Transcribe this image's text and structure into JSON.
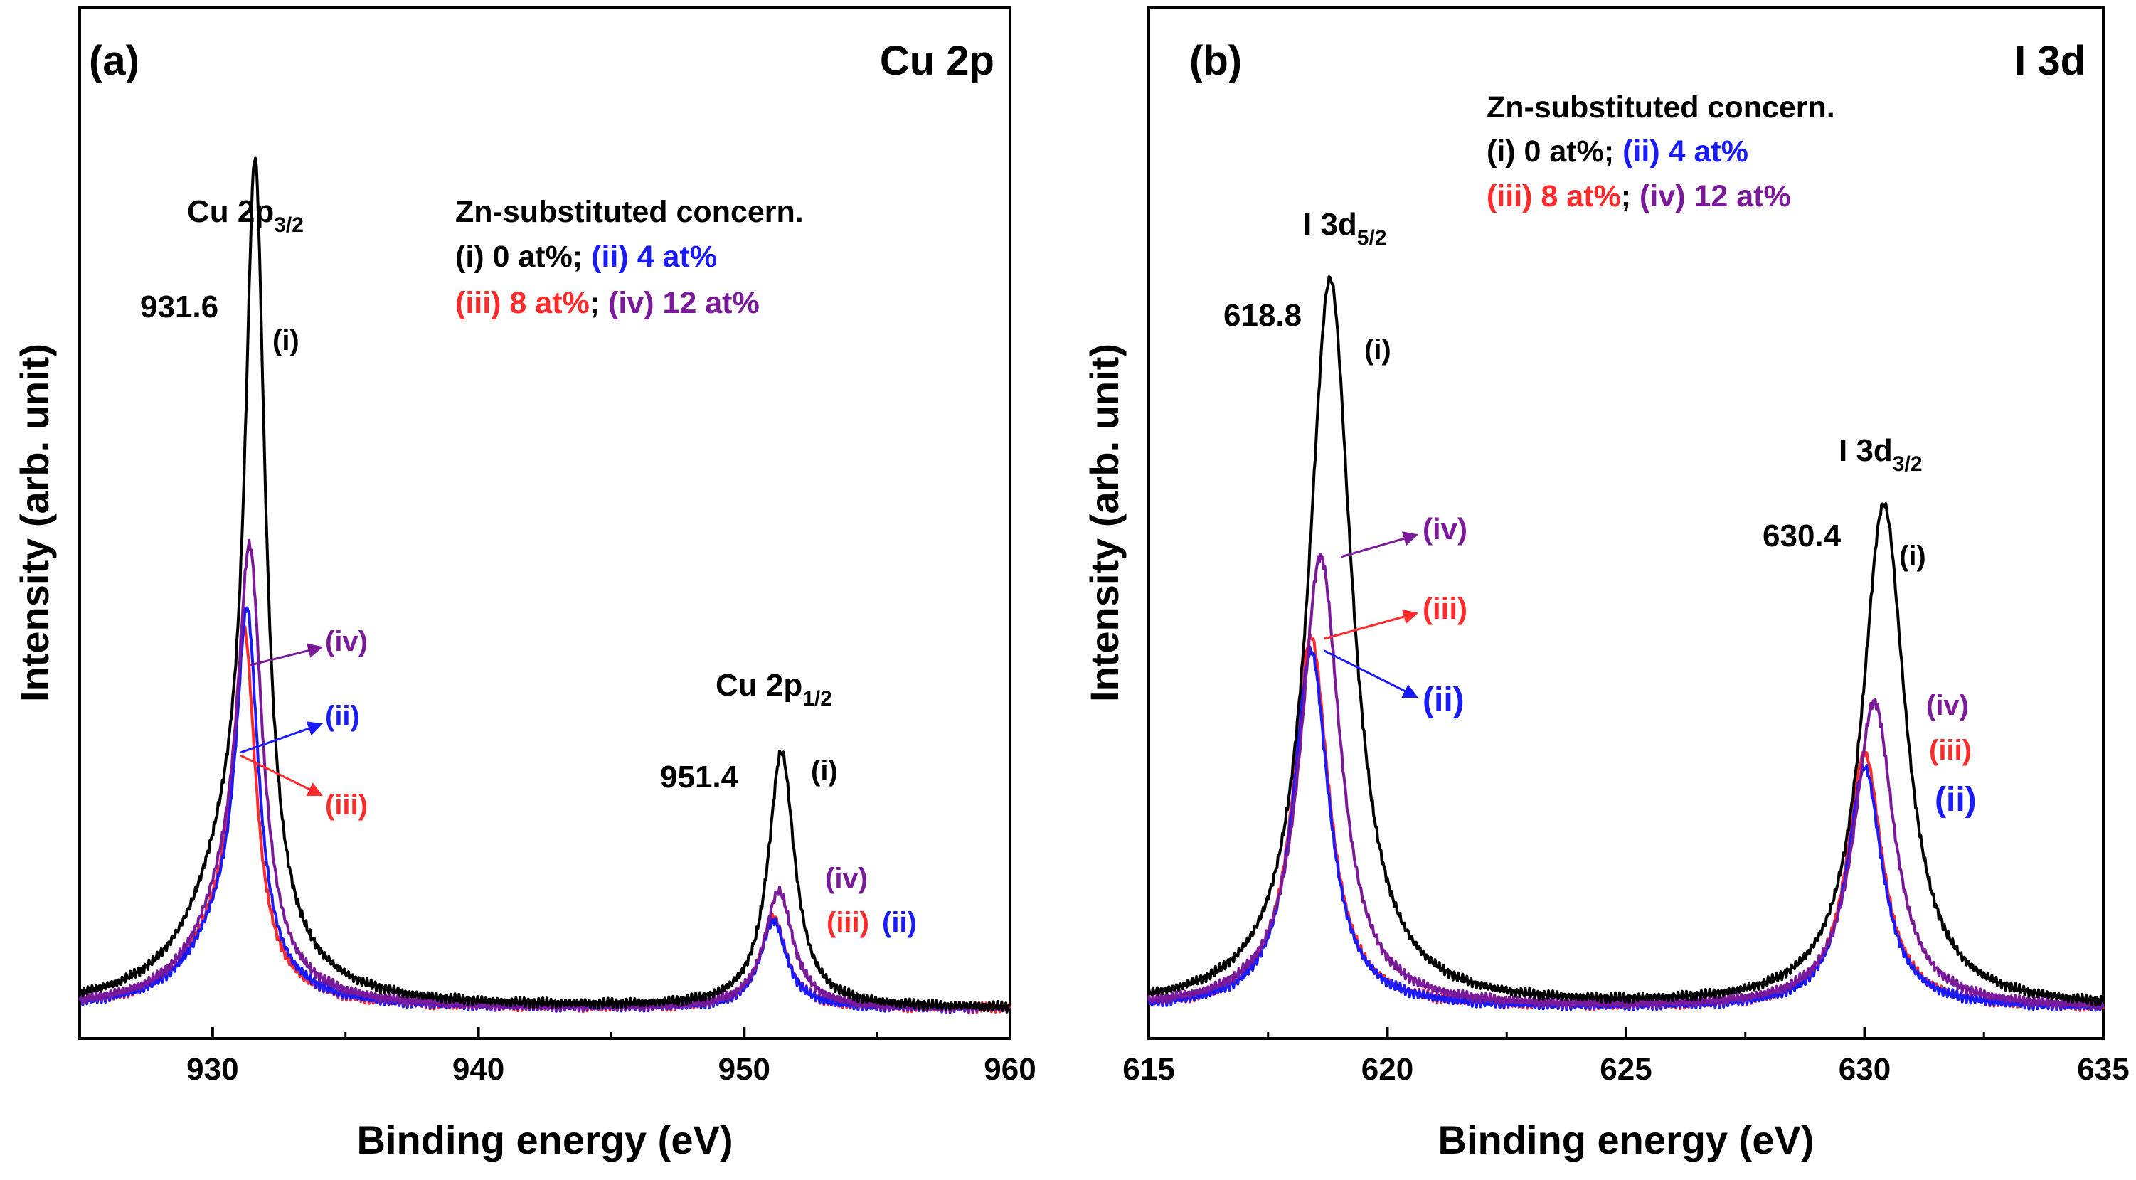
{
  "figure": {
    "colors": {
      "i": "#000000",
      "ii": "#1a1aff",
      "iii": "#ff2a2a",
      "iv": "#7a1a9a"
    }
  },
  "chart_data": [
    {
      "type": "line",
      "panel_label": "(a)",
      "title": "Cu 2p",
      "xlabel": "Binding energy (eV)",
      "ylabel": "Intensity (arb. unit)",
      "xlim": [
        925,
        960
      ],
      "ylim": [
        0,
        1.05
      ],
      "xticks": [
        "930",
        "940",
        "950",
        "960"
      ],
      "xtick_values": [
        930,
        940,
        950,
        960
      ],
      "baseline": 0.04,
      "series": [
        {
          "name": "(i) 0 at%",
          "key": "i",
          "color": "#000000",
          "peaks": [
            {
              "center": 931.6,
              "height": 1.0,
              "width": 0.45,
              "shoulder": 0.2,
              "shoulder_offset": -0.8,
              "shoulder_width": 1.8
            },
            {
              "center": 951.4,
              "height": 0.35,
              "width": 0.6
            }
          ]
        },
        {
          "name": "(ii) 4 at%",
          "key": "ii",
          "color": "#1a1aff",
          "peaks": [
            {
              "center": 931.3,
              "height": 0.47,
              "width": 0.5,
              "shoulder": 0.1,
              "shoulder_offset": -0.8,
              "shoulder_width": 1.6
            },
            {
              "center": 951.1,
              "height": 0.12,
              "width": 0.6
            }
          ]
        },
        {
          "name": "(iii) 8 at%",
          "key": "iii",
          "color": "#ff2a2a",
          "peaks": [
            {
              "center": 931.2,
              "height": 0.44,
              "width": 0.5,
              "shoulder": 0.1,
              "shoulder_offset": -0.8,
              "shoulder_width": 1.6
            },
            {
              "center": 951.1,
              "height": 0.125,
              "width": 0.6
            }
          ]
        },
        {
          "name": "(iv) 12 at%",
          "key": "iv",
          "color": "#7a1a9a",
          "peaks": [
            {
              "center": 931.4,
              "height": 0.54,
              "width": 0.55,
              "shoulder": 0.12,
              "shoulder_offset": -0.8,
              "shoulder_width": 1.6
            },
            {
              "center": 951.3,
              "height": 0.16,
              "width": 0.65
            }
          ]
        }
      ],
      "labels": {
        "peak1_main": "Cu 2p",
        "peak1_sub": "3/2",
        "peak1_value": "931.6",
        "peak2_main": "Cu 2p",
        "peak2_sub": "1/2",
        "peak2_value": "951.4",
        "legend_title": "Zn-substituted concern.",
        "legend_line1_a": "(i) 0 at%; ",
        "legend_line1_b": "(ii) 4 at%",
        "legend_line2_a": "(iii) 8 at%",
        "legend_line2_sep": "; ",
        "legend_line2_b": "(iv) 12 at%",
        "tag_i_1": "(i)",
        "tag_iv_1": "(iv)",
        "tag_ii_1": "(ii)",
        "tag_iii_1": "(iii)",
        "tag_i_2": "(i)",
        "tag_iv_2": "(iv)",
        "tag_iii_2": "(iii)",
        "tag_ii_2": "(ii)"
      }
    },
    {
      "type": "line",
      "panel_label": "(b)",
      "title": "I 3d",
      "xlabel": "Binding energy (eV)",
      "ylabel": "Intensity (arb. unit)",
      "xlim": [
        615,
        635
      ],
      "ylim": [
        0,
        1.05
      ],
      "xticks": [
        "615",
        "620",
        "625",
        "630",
        "635"
      ],
      "xtick_values": [
        615,
        620,
        625,
        630,
        635
      ],
      "baseline": 0.04,
      "series": [
        {
          "name": "(i) 0 at%",
          "key": "i",
          "color": "#000000",
          "peaks": [
            {
              "center": 618.8,
              "height": 1.0,
              "width": 0.55
            },
            {
              "center": 630.4,
              "height": 0.69,
              "width": 0.55
            }
          ]
        },
        {
          "name": "(ii) 4 at%",
          "key": "ii",
          "color": "#1a1aff",
          "peaks": [
            {
              "center": 618.4,
              "height": 0.49,
              "width": 0.45
            },
            {
              "center": 630.0,
              "height": 0.33,
              "width": 0.45
            }
          ]
        },
        {
          "name": "(iii) 8 at%",
          "key": "iii",
          "color": "#ff2a2a",
          "peaks": [
            {
              "center": 618.4,
              "height": 0.51,
              "width": 0.45
            },
            {
              "center": 630.0,
              "height": 0.35,
              "width": 0.45
            }
          ]
        },
        {
          "name": "(iv) 12 at%",
          "key": "iv",
          "color": "#7a1a9a",
          "peaks": [
            {
              "center": 618.6,
              "height": 0.62,
              "width": 0.5
            },
            {
              "center": 630.2,
              "height": 0.42,
              "width": 0.5
            }
          ]
        }
      ],
      "labels": {
        "peak1_main": "I 3d",
        "peak1_sub": "5/2",
        "peak1_value": "618.8",
        "peak2_main": "I 3d",
        "peak2_sub": "3/2",
        "peak2_value": "630.4",
        "legend_title": "Zn-substituted concern.",
        "legend_line1_a": "(i) 0 at%; ",
        "legend_line1_b": "(ii) 4 at%",
        "legend_line2_a": "(iii) 8 at%",
        "legend_line2_sep": "; ",
        "legend_line2_b": "(iv) 12 at%",
        "tag_i_1": "(i)",
        "tag_iv_1": "(iv)",
        "tag_iii_1": "(iii)",
        "tag_ii_1": "(ii)",
        "tag_i_2": "(i)",
        "tag_iv_2": "(iv)",
        "tag_iii_2": "(iii)",
        "tag_ii_2": "(ii)"
      }
    }
  ]
}
